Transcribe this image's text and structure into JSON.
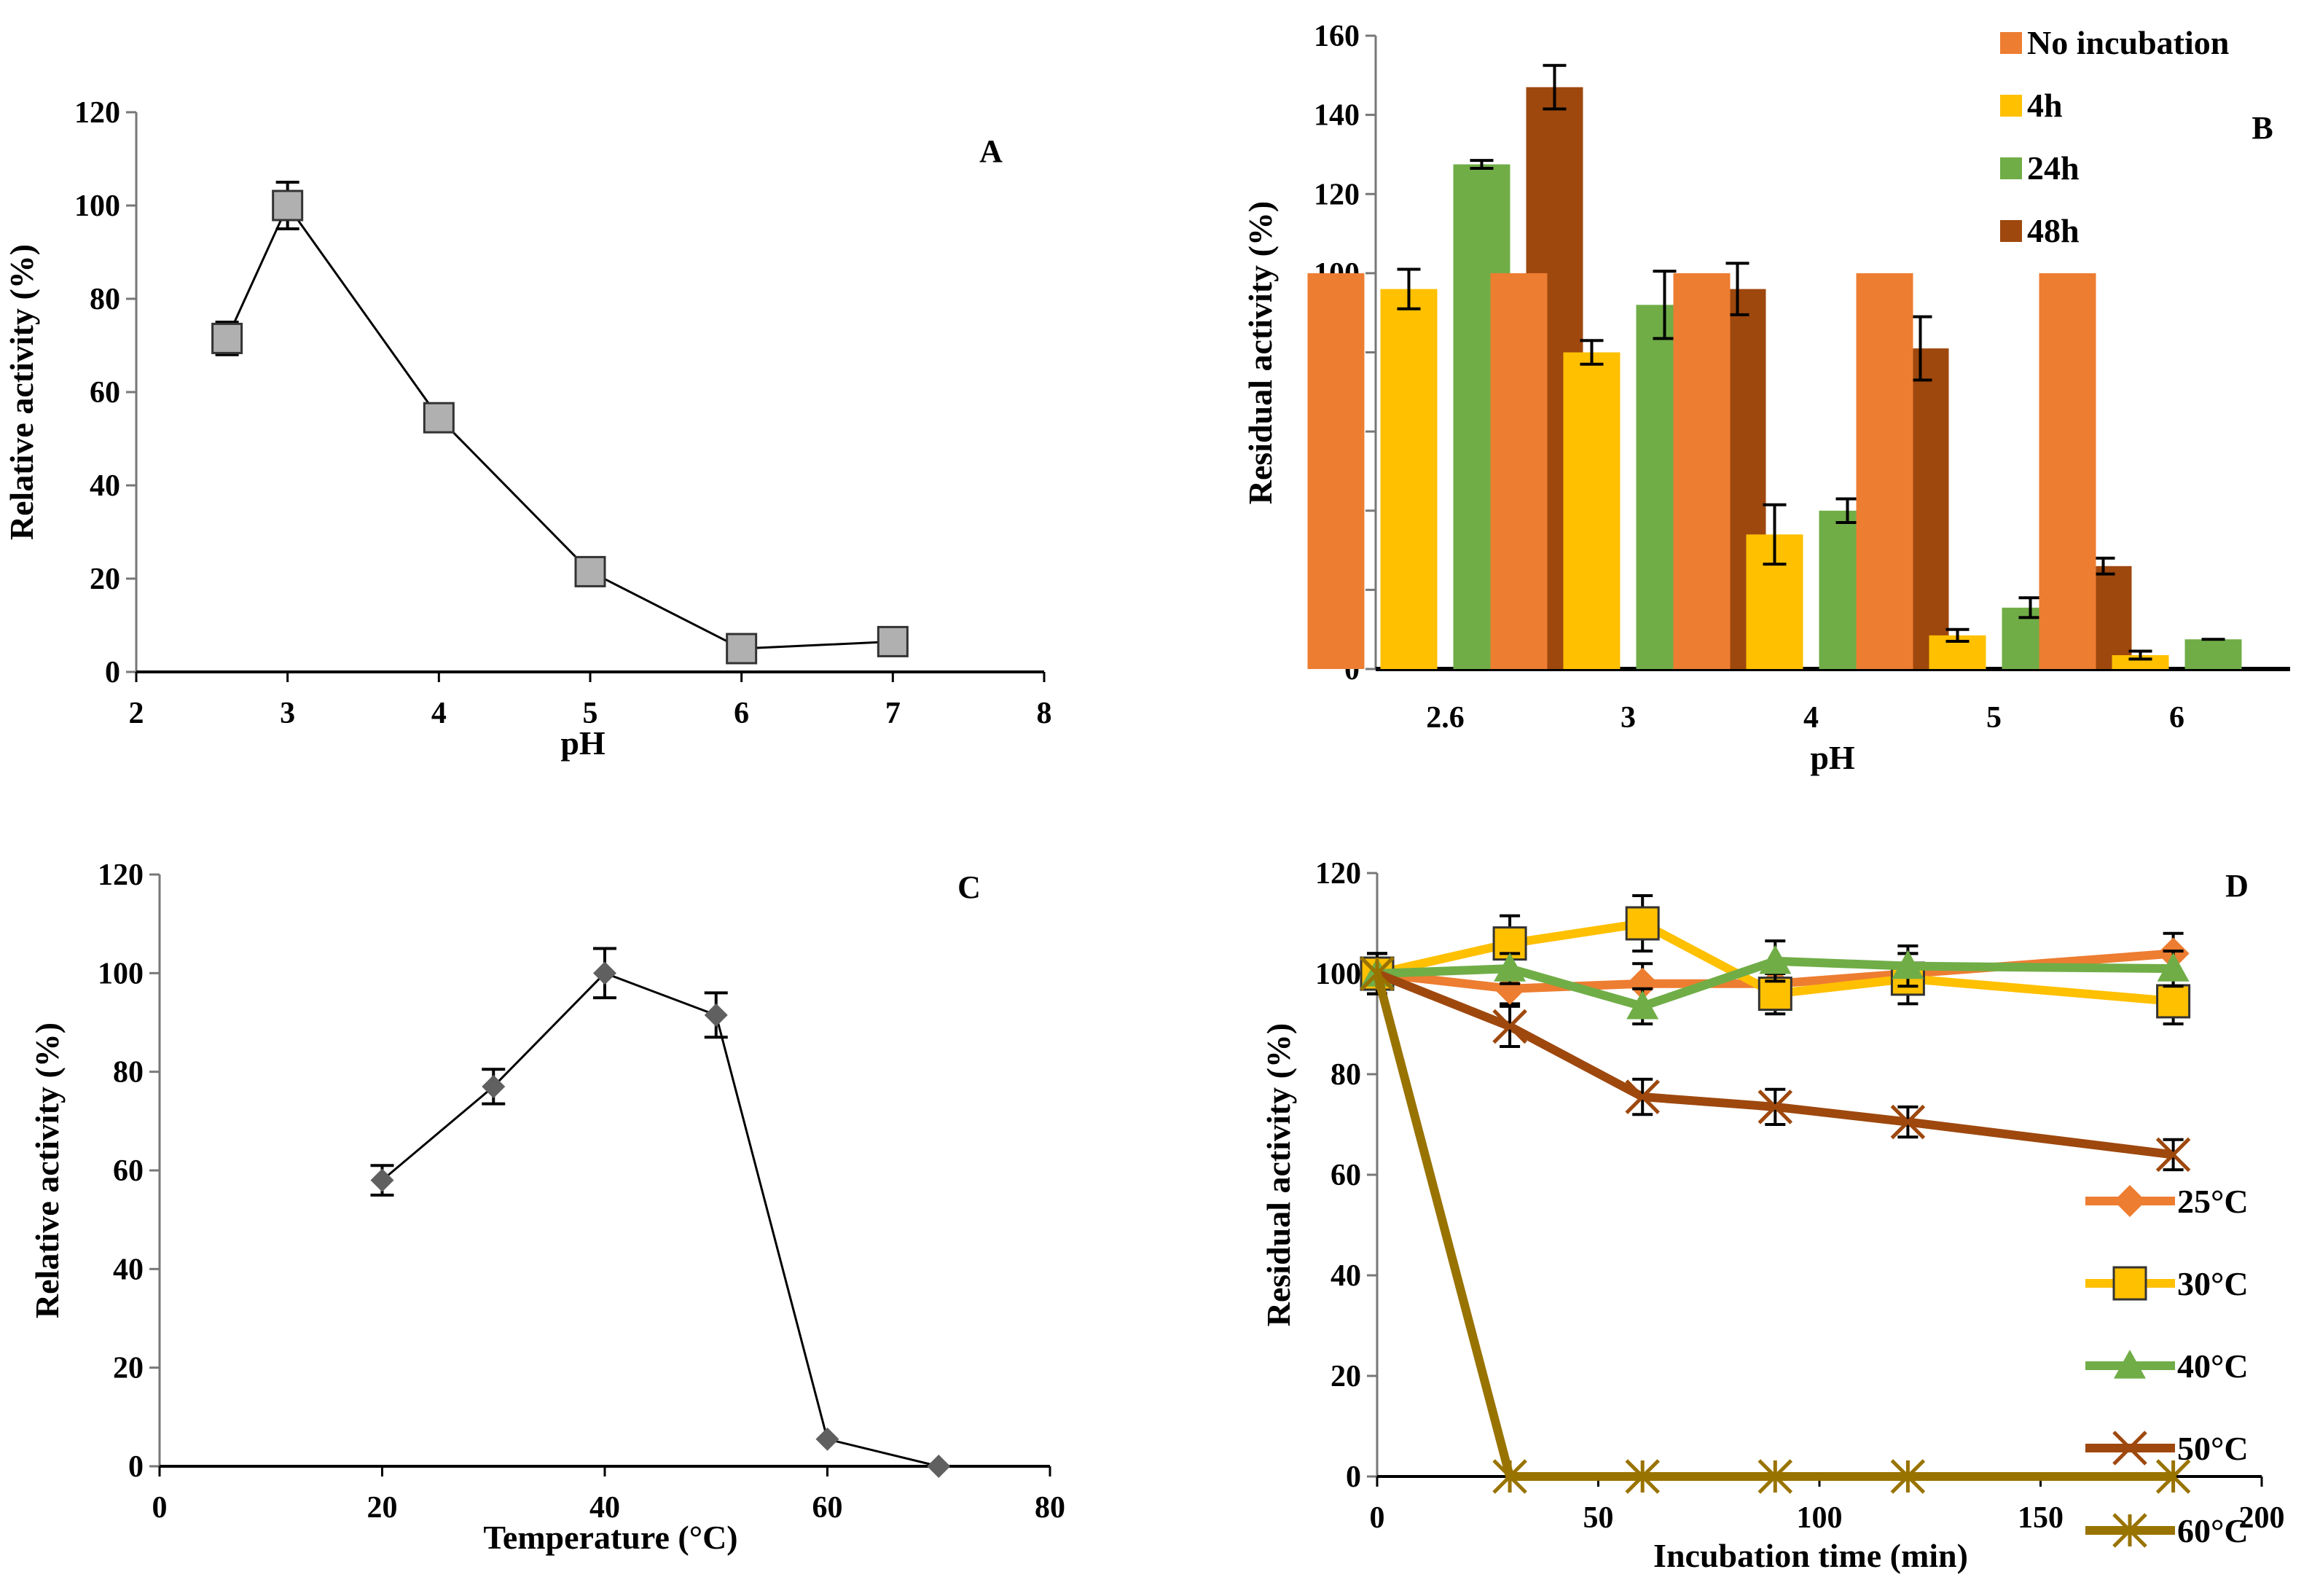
{
  "chart_data": [
    {
      "id": "A",
      "type": "line",
      "panel_label": "A",
      "xlabel": "pH",
      "ylabel": "Relative activity (%)",
      "xlim": [
        2,
        8
      ],
      "ylim": [
        0,
        120
      ],
      "xticks": [
        2,
        3,
        4,
        5,
        6,
        7,
        8
      ],
      "yticks": [
        0,
        20,
        40,
        60,
        80,
        100,
        120
      ],
      "series": [
        {
          "name": "pH activity",
          "color": "#b0b0b0",
          "marker": "square",
          "x": [
            2.6,
            3,
            4,
            5,
            6,
            7
          ],
          "values": [
            71.5,
            100,
            54.5,
            21.5,
            5,
            6.5
          ],
          "error": [
            3.5,
            5,
            2,
            1,
            1,
            1
          ]
        }
      ]
    },
    {
      "id": "B",
      "type": "bar",
      "panel_label": "B",
      "xlabel": "pH",
      "ylabel": "Residual activity (%)",
      "ylim": [
        0,
        160
      ],
      "yticks": [
        0,
        20,
        40,
        60,
        80,
        100,
        120,
        140,
        160
      ],
      "legend": "top-right",
      "categories": [
        "2.6",
        "3",
        "4",
        "5",
        "6"
      ],
      "series": [
        {
          "name": "No incubation",
          "color": "#ED7D31",
          "values": [
            100,
            100,
            100,
            100,
            100
          ],
          "error": [
            0,
            0,
            0,
            0,
            0
          ]
        },
        {
          "name": "4h",
          "color": "#FFC000",
          "values": [
            96,
            80,
            34,
            8.5,
            3.5
          ],
          "error": [
            5,
            3,
            7.5,
            1.5,
            1
          ]
        },
        {
          "name": "24h",
          "color": "#70AD47",
          "values": [
            127.5,
            92,
            40,
            15.5,
            7.5
          ],
          "error": [
            1,
            8.5,
            3,
            2.5,
            0
          ]
        },
        {
          "name": "48h",
          "color": "#9E480E",
          "values": [
            147,
            96,
            81,
            26,
            null
          ],
          "error": [
            5.5,
            6.5,
            8,
            2,
            0
          ]
        }
      ]
    },
    {
      "id": "C",
      "type": "line",
      "panel_label": "C",
      "xlabel": "Temperature (°C)",
      "ylabel": "Relative activity (%)",
      "xlim": [
        0,
        80
      ],
      "ylim": [
        0,
        120
      ],
      "xticks": [
        0,
        20,
        40,
        60,
        80
      ],
      "yticks": [
        0,
        20,
        40,
        60,
        80,
        100,
        120
      ],
      "series": [
        {
          "name": "Temperature activity",
          "color": "#606060",
          "marker": "diamond",
          "x": [
            20,
            30,
            40,
            50,
            60,
            70
          ],
          "values": [
            58,
            77,
            100,
            91.5,
            5.5,
            0
          ],
          "error": [
            3,
            3.5,
            5,
            4.5,
            0,
            0
          ]
        }
      ]
    },
    {
      "id": "D",
      "type": "line",
      "panel_label": "D",
      "xlabel": "Incubation time (min)",
      "ylabel": "Residual activity (%)",
      "xlim": [
        0,
        200
      ],
      "ylim": [
        0,
        120
      ],
      "xticks": [
        0,
        50,
        100,
        150,
        200
      ],
      "yticks": [
        0,
        20,
        40,
        60,
        80,
        100,
        120
      ],
      "legend": "bottom-right",
      "x": [
        0,
        30,
        60,
        90,
        120,
        180
      ],
      "series": [
        {
          "name": "25°C",
          "color": "#ED7D31",
          "marker": "diamond",
          "values": [
            100,
            97,
            98,
            98,
            100,
            104
          ],
          "error": [
            4,
            3,
            4,
            4,
            4,
            4
          ]
        },
        {
          "name": "30°C",
          "color": "#FFC000",
          "marker": "square",
          "values": [
            100,
            106,
            110,
            96,
            99,
            94.5
          ],
          "error": [
            4,
            5.5,
            5.5,
            4,
            5,
            4.5
          ]
        },
        {
          "name": "40°C",
          "color": "#70AD47",
          "marker": "triangle",
          "values": [
            100,
            101,
            93.5,
            102.5,
            101.5,
            101
          ],
          "error": [
            4,
            3,
            3.5,
            4,
            4,
            3.5
          ]
        },
        {
          "name": "50°C",
          "color": "#9E480E",
          "marker": "x",
          "values": [
            100,
            89.5,
            75.5,
            73.5,
            70.5,
            64
          ],
          "error": [
            4,
            4,
            3.5,
            3.5,
            3,
            3
          ]
        },
        {
          "name": "60°C",
          "color": "#997300",
          "marker": "star",
          "values": [
            100,
            0,
            0,
            0,
            0,
            0
          ],
          "error": [
            0,
            0,
            0,
            0,
            0,
            0
          ]
        }
      ]
    }
  ]
}
